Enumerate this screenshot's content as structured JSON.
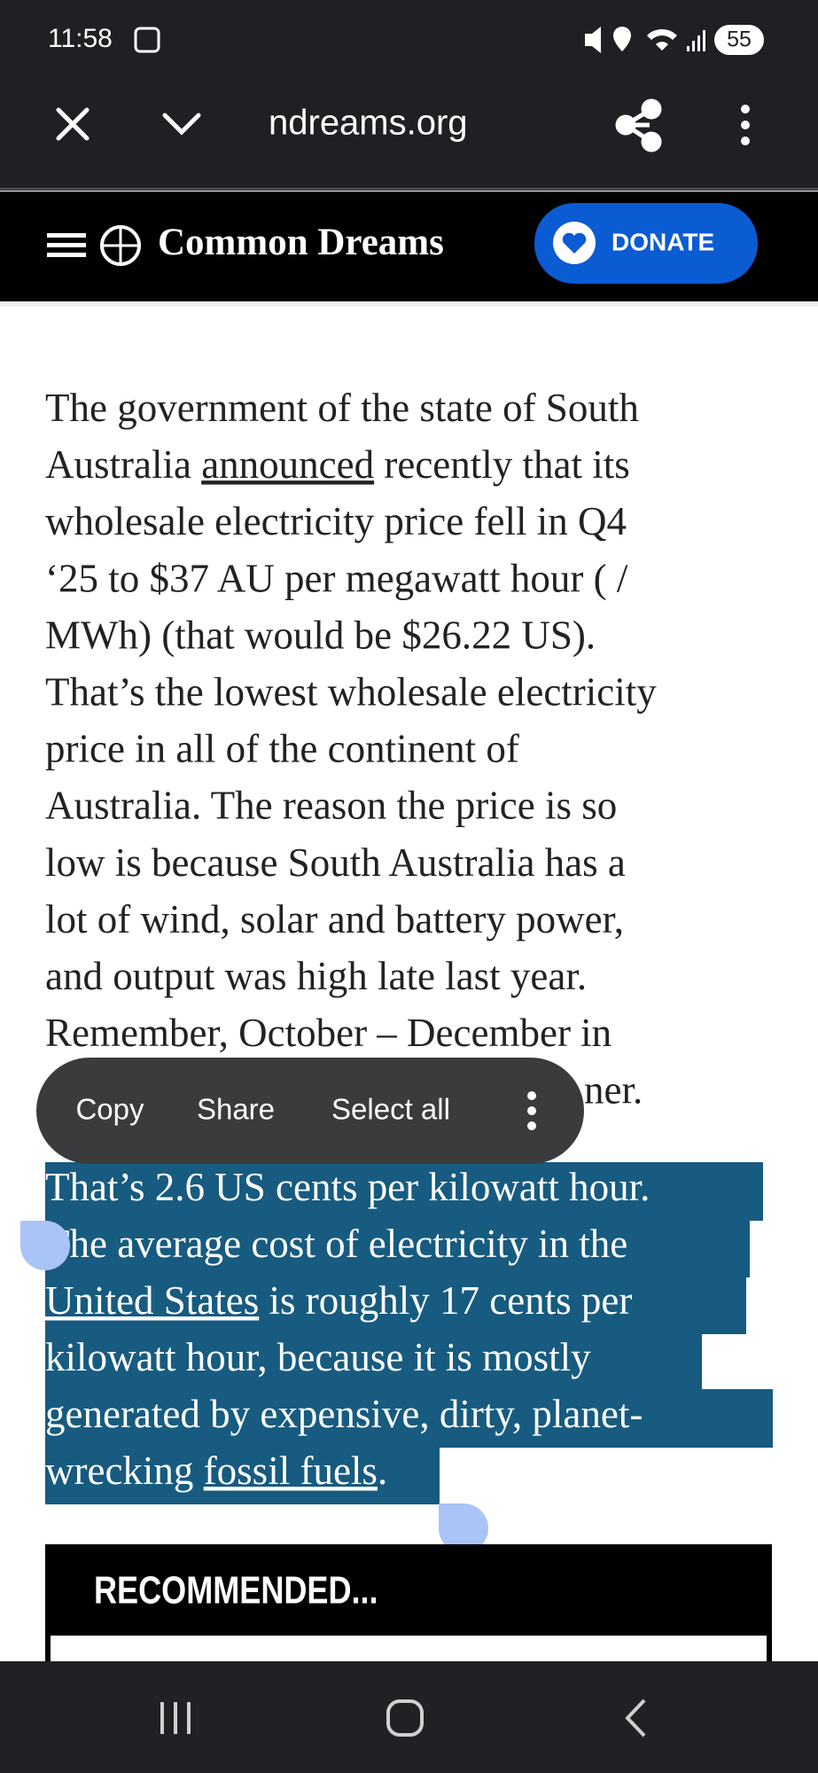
{
  "status_bar": {
    "time": "11:58",
    "battery": "55"
  },
  "browser_bar": {
    "url": "ndreams.org"
  },
  "site_header": {
    "logo": "Common Dreams",
    "donate": "DONATE"
  },
  "article": {
    "paragraphs": [
      {
        "lines": [
          [
            "The government of the state of South"
          ],
          [
            "Australia ",
            {
              "link": "announced"
            },
            " recently that its"
          ],
          [
            "wholesale electricity price fell in Q4"
          ],
          [
            "‘25 to $37 AU per megawatt hour ( /"
          ],
          [
            "MWh) (that would be $26.22 US)."
          ],
          [
            "That’s the lowest wholesale electricity"
          ],
          [
            "price in all of the continent of"
          ],
          [
            "Australia. The reason the price is so"
          ],
          [
            "low is because South Australia has a"
          ],
          [
            "lot of wind, solar and battery power,"
          ],
          [
            "and output was high late last year."
          ],
          [
            "Remember, October – December in"
          ]
        ],
        "obscured_tail": "ner."
      },
      {
        "selected": true,
        "lines": [
          [
            "That’s 2.6 US cents per kilowatt hour."
          ],
          [
            "The average cost of electricity in the"
          ],
          [
            {
              "link": "United States"
            },
            " is roughly 17 cents per"
          ],
          [
            "kilowatt hour, because it is mostly"
          ],
          [
            "generated by expensive, dirty, planet-"
          ],
          [
            "wrecking ",
            {
              "link": "fossil fuels"
            },
            "."
          ]
        ]
      }
    ]
  },
  "context_menu": {
    "items": [
      "Copy",
      "Share",
      "Select all"
    ]
  },
  "recommended": {
    "title": "RECOMMENDED..."
  }
}
